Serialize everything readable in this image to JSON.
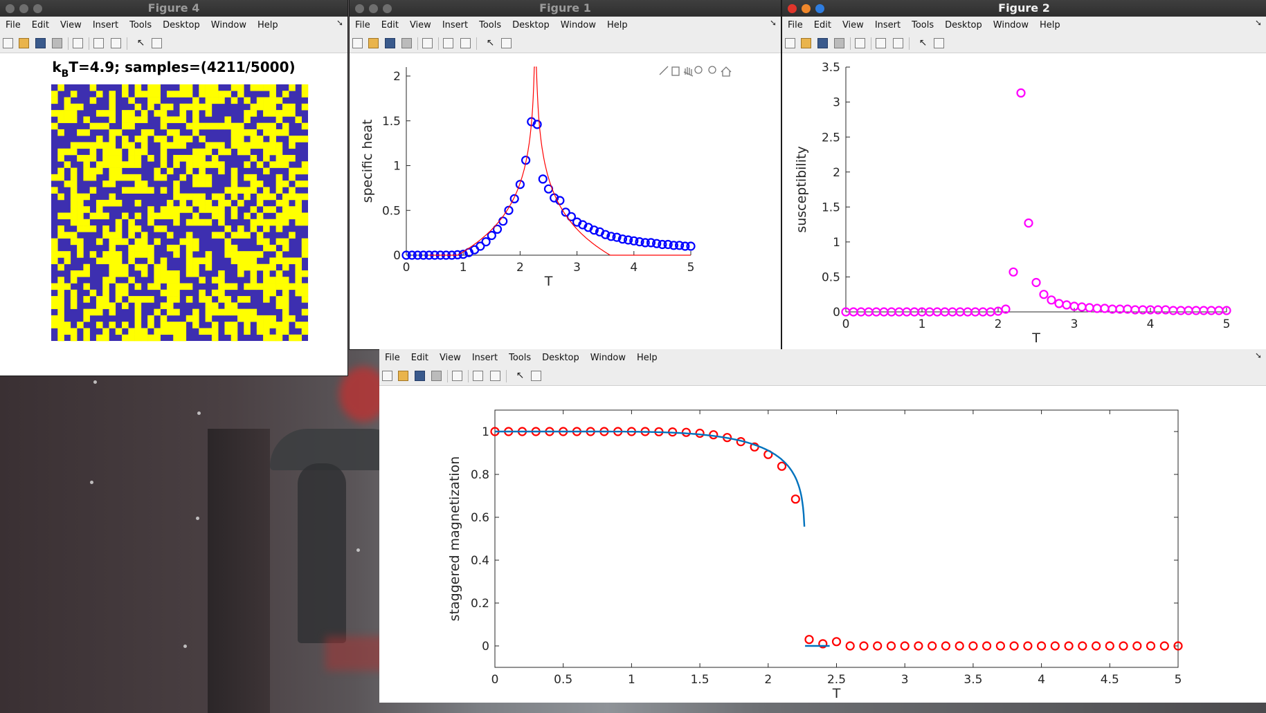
{
  "menu": [
    "File",
    "Edit",
    "View",
    "Insert",
    "Tools",
    "Desktop",
    "Window",
    "Help"
  ],
  "windows": {
    "fig4": {
      "title": "Figure 4"
    },
    "fig1": {
      "title": "Figure 1"
    },
    "fig2": {
      "title": "Figure 2"
    },
    "fig3": {
      "title": ""
    }
  },
  "fig4_plot": {
    "title_k": "k",
    "title_sub": "B",
    "title_rest": "T=4.9;  samples=(4211/5000)",
    "colors": {
      "up": "#ffff00",
      "down": "#3d2fb0"
    },
    "grid_size": 40
  },
  "chart_data": [
    {
      "id": "specific_heat",
      "type": "scatter",
      "xlabel": "T",
      "ylabel": "specific heat",
      "xlim": [
        0,
        5
      ],
      "ylim": [
        0,
        2.1
      ],
      "xticks": [
        "0",
        "1",
        "2",
        "3",
        "4",
        "5"
      ],
      "yticks": [
        "0",
        "0.5",
        "1",
        "1.5",
        "2"
      ],
      "series": [
        {
          "type": "scatter",
          "color": "#0000ff",
          "marker": "circle",
          "x": [
            0,
            0.1,
            0.2,
            0.3,
            0.4,
            0.5,
            0.6,
            0.7,
            0.8,
            0.9,
            1.0,
            1.1,
            1.2,
            1.3,
            1.4,
            1.5,
            1.6,
            1.7,
            1.8,
            1.9,
            2.0,
            2.1,
            2.2,
            2.3,
            2.4,
            2.5,
            2.6,
            2.7,
            2.8,
            2.9,
            3.0,
            3.1,
            3.2,
            3.3,
            3.4,
            3.5,
            3.6,
            3.7,
            3.8,
            3.9,
            4.0,
            4.1,
            4.2,
            4.3,
            4.4,
            4.5,
            4.6,
            4.7,
            4.8,
            4.9,
            5.0
          ],
          "y": [
            0,
            0,
            0,
            0,
            0,
            0,
            0,
            0,
            0,
            0.005,
            0.01,
            0.03,
            0.06,
            0.1,
            0.15,
            0.22,
            0.29,
            0.38,
            0.5,
            0.63,
            0.79,
            1.06,
            1.49,
            1.46,
            0.85,
            0.74,
            0.64,
            0.61,
            0.48,
            0.43,
            0.37,
            0.34,
            0.31,
            0.28,
            0.26,
            0.23,
            0.21,
            0.2,
            0.18,
            0.17,
            0.16,
            0.15,
            0.14,
            0.14,
            0.13,
            0.12,
            0.12,
            0.11,
            0.11,
            0.1,
            0.1
          ]
        },
        {
          "type": "line",
          "color": "#ff0000"
        }
      ]
    },
    {
      "id": "susceptibility",
      "type": "scatter",
      "xlabel": "T",
      "ylabel": "susceptibility",
      "xlim": [
        0,
        5
      ],
      "ylim": [
        0,
        3.5
      ],
      "xticks": [
        "0",
        "1",
        "2",
        "3",
        "4",
        "5"
      ],
      "yticks": [
        "0",
        "0.5",
        "1",
        "1.5",
        "2",
        "2.5",
        "3",
        "3.5"
      ],
      "series": [
        {
          "type": "scatter",
          "color": "#ff00ff",
          "marker": "circle",
          "x": [
            0,
            0.1,
            0.2,
            0.3,
            0.4,
            0.5,
            0.6,
            0.7,
            0.8,
            0.9,
            1.0,
            1.1,
            1.2,
            1.3,
            1.4,
            1.5,
            1.6,
            1.7,
            1.8,
            1.9,
            2.0,
            2.1,
            2.2,
            2.3,
            2.4,
            2.5,
            2.6,
            2.7,
            2.8,
            2.9,
            3.0,
            3.1,
            3.2,
            3.3,
            3.4,
            3.5,
            3.6,
            3.7,
            3.8,
            3.9,
            4.0,
            4.1,
            4.2,
            4.3,
            4.4,
            4.5,
            4.6,
            4.7,
            4.8,
            4.9,
            5.0
          ],
          "y": [
            0,
            0,
            0,
            0,
            0,
            0,
            0,
            0,
            0,
            0,
            0,
            0,
            0,
            0,
            0,
            0,
            0,
            0,
            0,
            0,
            0.01,
            0.04,
            0.57,
            3.13,
            1.27,
            0.42,
            0.25,
            0.17,
            0.12,
            0.1,
            0.08,
            0.07,
            0.06,
            0.05,
            0.05,
            0.04,
            0.04,
            0.04,
            0.03,
            0.03,
            0.03,
            0.03,
            0.03,
            0.02,
            0.02,
            0.02,
            0.02,
            0.02,
            0.02,
            0.02,
            0.02
          ]
        }
      ]
    },
    {
      "id": "staggered_magnetization",
      "type": "scatter",
      "xlabel": "T",
      "ylabel": "staggered magnetization",
      "xlim": [
        0,
        5
      ],
      "ylim": [
        -0.1,
        1.1
      ],
      "xticks": [
        "0",
        "0.5",
        "1",
        "1.5",
        "2",
        "2.5",
        "3",
        "3.5",
        "4",
        "4.5",
        "5"
      ],
      "yticks": [
        "0",
        "0.2",
        "0.4",
        "0.6",
        "0.8",
        "1"
      ],
      "series": [
        {
          "type": "scatter",
          "color": "#ff0000",
          "marker": "circle",
          "x": [
            0,
            0.1,
            0.2,
            0.3,
            0.4,
            0.5,
            0.6,
            0.7,
            0.8,
            0.9,
            1.0,
            1.1,
            1.2,
            1.3,
            1.4,
            1.5,
            1.6,
            1.7,
            1.8,
            1.9,
            2.0,
            2.1,
            2.2,
            2.3,
            2.4,
            2.5,
            2.6,
            2.7,
            2.8,
            2.9,
            3.0,
            3.1,
            3.2,
            3.3,
            3.4,
            3.5,
            3.6,
            3.7,
            3.8,
            3.9,
            4.0,
            4.1,
            4.2,
            4.3,
            4.4,
            4.5,
            4.6,
            4.7,
            4.8,
            4.9,
            5.0
          ],
          "y": [
            1,
            1,
            1,
            1,
            1,
            1,
            1,
            1,
            1,
            1,
            1,
            1,
            0.999,
            0.998,
            0.996,
            0.992,
            0.985,
            0.972,
            0.953,
            0.928,
            0.893,
            0.838,
            0.685,
            0.03,
            0.01,
            0.02,
            0,
            0,
            0,
            0,
            0,
            0,
            0,
            0,
            0,
            0,
            0,
            0,
            0,
            0,
            0,
            0,
            0,
            0,
            0,
            0,
            0,
            0,
            0,
            0,
            0
          ]
        },
        {
          "type": "line",
          "color": "#0072bd"
        }
      ]
    }
  ]
}
